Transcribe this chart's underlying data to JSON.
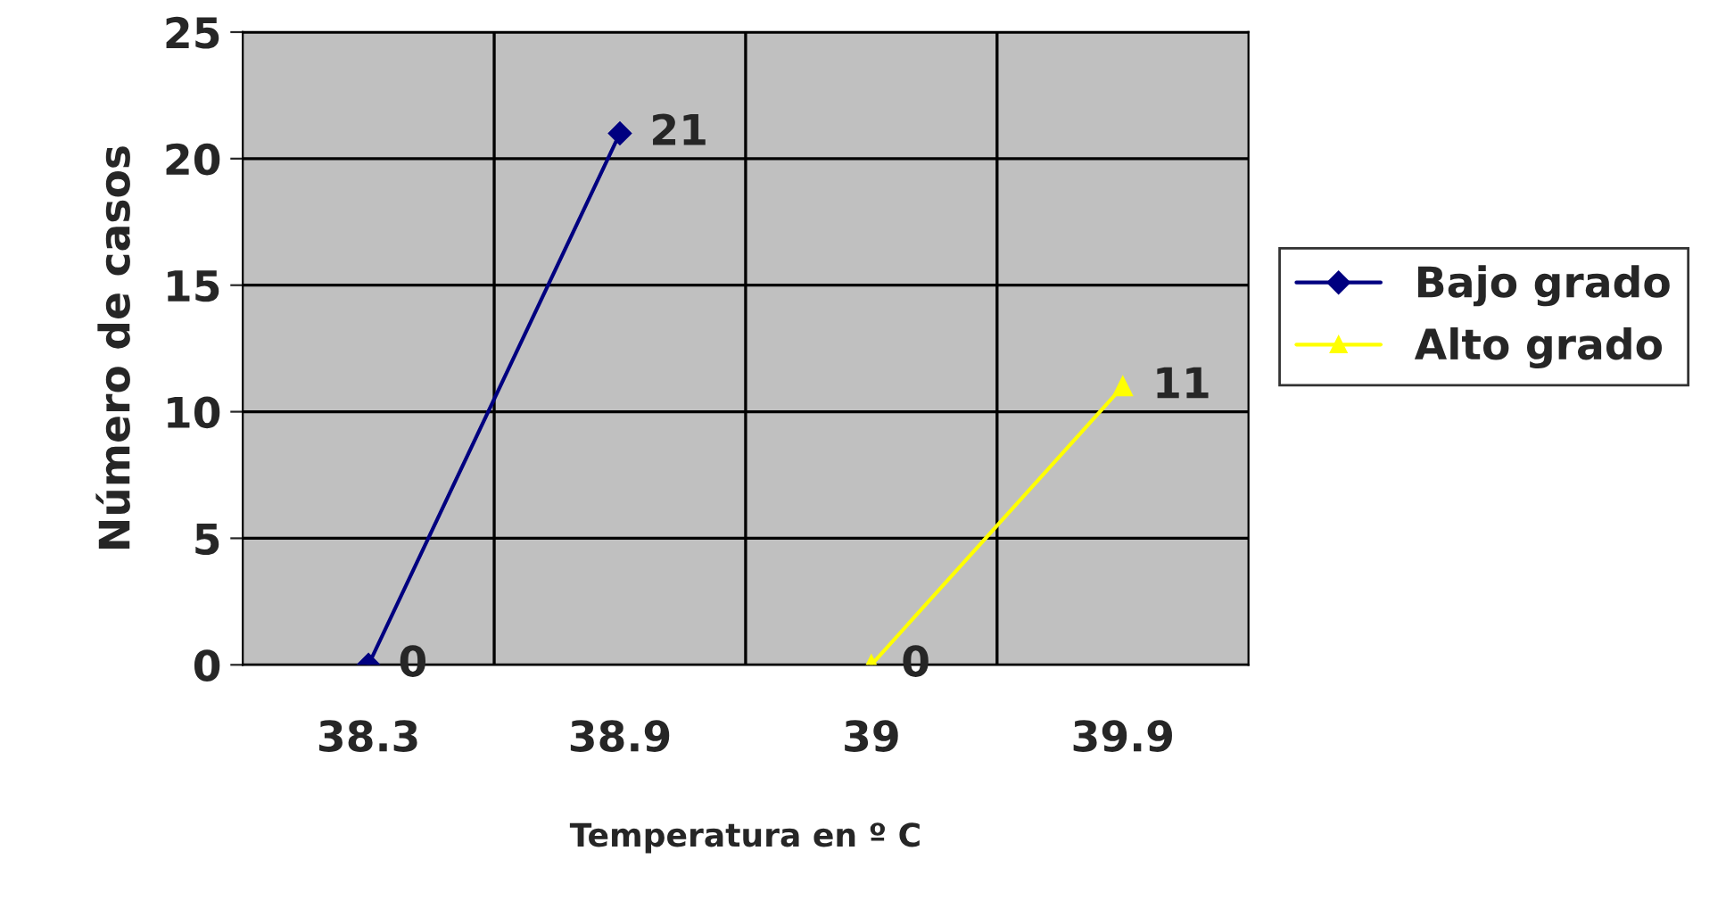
{
  "chart_data": {
    "type": "line",
    "xlabel": "Temperatura en º C",
    "ylabel": "Número de casos",
    "categories": [
      "38.3",
      "38.9",
      "39",
      "39.9"
    ],
    "series": [
      {
        "name": "Bajo grado",
        "color": "#000080",
        "marker": "diamond",
        "values": [
          0,
          21,
          null,
          null
        ]
      },
      {
        "name": "Alto grado",
        "color": "#ffff00",
        "marker": "triangle",
        "values": [
          null,
          null,
          0,
          11
        ]
      }
    ],
    "ylim": [
      0,
      25
    ],
    "yticks": [
      0,
      5,
      10,
      15,
      20,
      25
    ],
    "grid": true,
    "legend": "right",
    "data_labels": true
  }
}
